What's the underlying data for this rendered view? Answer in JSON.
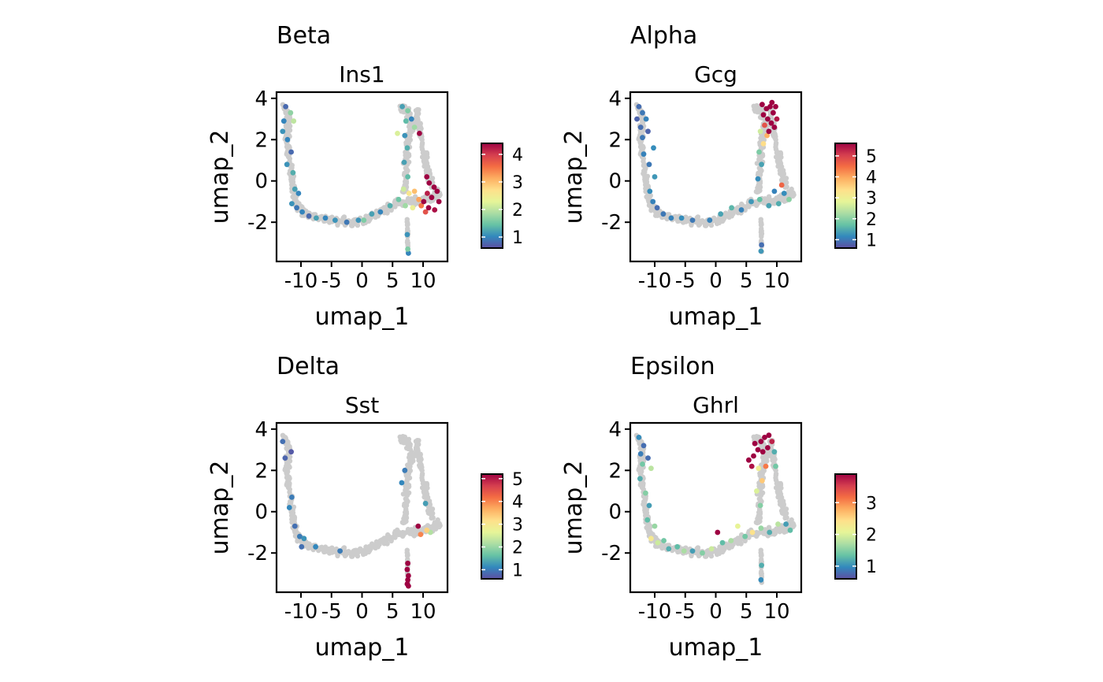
{
  "colors": {
    "background_cells": "#cccccc",
    "spectral_low_to_high": [
      "#5e4fa2",
      "#3288bd",
      "#66c2a5",
      "#abdda4",
      "#e6f598",
      "#fee08b",
      "#fdae61",
      "#f46d43",
      "#d53e4f",
      "#9e0142"
    ]
  },
  "chart_data": [
    {
      "type": "scatter",
      "title": "Beta",
      "subtitle": "Ins1",
      "xlabel": "umap_1",
      "ylabel": "umap_2",
      "xlim": [
        -14,
        14
      ],
      "ylim": [
        -3.9,
        4.3
      ],
      "xticks": [
        -10,
        -5,
        0,
        5,
        10
      ],
      "xtick_labels": [
        "-10",
        "-5",
        "0",
        "5",
        "10"
      ],
      "yticks": [
        -2,
        0,
        2,
        4
      ],
      "ytick_labels": [
        "-2",
        "0",
        "2",
        "4"
      ],
      "colorbar": {
        "min": 0.6,
        "max": 4.4,
        "ticks": [
          1,
          2,
          3,
          4
        ],
        "tick_labels": [
          "1",
          "2",
          "3",
          "4"
        ]
      },
      "expressing_points": [
        {
          "x": -12.5,
          "y": 3.6,
          "v": 0.8
        },
        {
          "x": -12.8,
          "y": 2.9,
          "v": 1.0
        },
        {
          "x": -13.0,
          "y": 2.4,
          "v": 1.1
        },
        {
          "x": -11.7,
          "y": 3.3,
          "v": 1.7
        },
        {
          "x": -11.2,
          "y": 2.9,
          "v": 2.0
        },
        {
          "x": -12.2,
          "y": 2.0,
          "v": 1.0
        },
        {
          "x": -11.6,
          "y": 1.4,
          "v": 0.8
        },
        {
          "x": -12.3,
          "y": 0.8,
          "v": 1.1
        },
        {
          "x": -11.3,
          "y": 0.4,
          "v": 1.3
        },
        {
          "x": -11.0,
          "y": -0.4,
          "v": 1.2
        },
        {
          "x": -10.4,
          "y": -0.6,
          "v": 1.0
        },
        {
          "x": -11.5,
          "y": -1.1,
          "v": 1.1
        },
        {
          "x": -10.7,
          "y": -1.3,
          "v": 0.9
        },
        {
          "x": -9.8,
          "y": -1.5,
          "v": 1.0
        },
        {
          "x": -8.7,
          "y": -1.7,
          "v": 0.8
        },
        {
          "x": -7.5,
          "y": -1.8,
          "v": 1.2
        },
        {
          "x": -6.0,
          "y": -1.8,
          "v": 1.0
        },
        {
          "x": -4.4,
          "y": -1.9,
          "v": 1.1
        },
        {
          "x": -2.5,
          "y": -2.0,
          "v": 0.9
        },
        {
          "x": -0.6,
          "y": -1.9,
          "v": 1.1
        },
        {
          "x": 0.3,
          "y": -1.9,
          "v": 1.6
        },
        {
          "x": 1.6,
          "y": -1.6,
          "v": 1.2
        },
        {
          "x": 3.0,
          "y": -1.5,
          "v": 1.0
        },
        {
          "x": 4.6,
          "y": -1.2,
          "v": 1.3
        },
        {
          "x": 6.0,
          "y": -0.9,
          "v": 1.5
        },
        {
          "x": 6.6,
          "y": 3.6,
          "v": 1.2
        },
        {
          "x": 7.5,
          "y": 3.4,
          "v": 1.6
        },
        {
          "x": 8.1,
          "y": 3.0,
          "v": 1.0
        },
        {
          "x": 8.6,
          "y": 2.6,
          "v": 1.8
        },
        {
          "x": 7.2,
          "y": 2.9,
          "v": 1.4
        },
        {
          "x": 5.8,
          "y": 2.3,
          "v": 2.2
        },
        {
          "x": 7.0,
          "y": 2.2,
          "v": 1.1
        },
        {
          "x": 9.4,
          "y": 2.3,
          "v": 4.4
        },
        {
          "x": 7.4,
          "y": 1.6,
          "v": 1.3
        },
        {
          "x": 6.9,
          "y": 0.9,
          "v": 1.2
        },
        {
          "x": 7.5,
          "y": 0.2,
          "v": 1.4
        },
        {
          "x": 6.8,
          "y": -0.4,
          "v": 2.1
        },
        {
          "x": 7.7,
          "y": -0.6,
          "v": 2.6
        },
        {
          "x": 8.6,
          "y": -0.5,
          "v": 3.0
        },
        {
          "x": 9.3,
          "y": -0.9,
          "v": 3.2
        },
        {
          "x": 7.1,
          "y": -1.2,
          "v": 1.8
        },
        {
          "x": 8.3,
          "y": -1.3,
          "v": 2.4
        },
        {
          "x": 10.6,
          "y": 0.2,
          "v": 4.4
        },
        {
          "x": 11.0,
          "y": -0.1,
          "v": 4.4
        },
        {
          "x": 11.8,
          "y": -0.3,
          "v": 4.4
        },
        {
          "x": 12.3,
          "y": -0.5,
          "v": 4.4
        },
        {
          "x": 11.4,
          "y": -0.8,
          "v": 4.4
        },
        {
          "x": 12.6,
          "y": -1.0,
          "v": 4.4
        },
        {
          "x": 10.7,
          "y": -0.6,
          "v": 4.2
        },
        {
          "x": 10.1,
          "y": -1.0,
          "v": 4.4
        },
        {
          "x": 10.9,
          "y": -1.3,
          "v": 4.4
        },
        {
          "x": 11.9,
          "y": -1.4,
          "v": 4.3
        },
        {
          "x": 10.4,
          "y": -1.5,
          "v": 3.8
        },
        {
          "x": 9.7,
          "y": -1.2,
          "v": 3.5
        },
        {
          "x": 7.4,
          "y": -2.6,
          "v": 1.1
        },
        {
          "x": 7.5,
          "y": -3.3,
          "v": 1.6
        },
        {
          "x": 7.6,
          "y": -3.5,
          "v": 1.0
        }
      ]
    },
    {
      "type": "scatter",
      "title": "Alpha",
      "subtitle": "Gcg",
      "xlabel": "umap_1",
      "ylabel": "umap_2",
      "xlim": [
        -14,
        14
      ],
      "ylim": [
        -3.9,
        4.3
      ],
      "xticks": [
        -10,
        -5,
        0,
        5,
        10
      ],
      "xtick_labels": [
        "-10",
        "-5",
        "0",
        "5",
        "10"
      ],
      "yticks": [
        -2,
        0,
        2,
        4
      ],
      "ytick_labels": [
        "-2",
        "0",
        "2",
        "4"
      ],
      "colorbar": {
        "min": 0.6,
        "max": 5.6,
        "ticks": [
          1,
          2,
          3,
          4,
          5
        ],
        "tick_labels": [
          "1",
          "2",
          "3",
          "4",
          "5"
        ]
      },
      "expressing_points": [
        {
          "x": -12.6,
          "y": 3.6,
          "v": 0.9
        },
        {
          "x": -12.0,
          "y": 3.3,
          "v": 1.0
        },
        {
          "x": -12.9,
          "y": 3.0,
          "v": 0.8
        },
        {
          "x": -11.4,
          "y": 3.0,
          "v": 1.1
        },
        {
          "x": -12.3,
          "y": 2.6,
          "v": 0.9
        },
        {
          "x": -11.1,
          "y": 2.4,
          "v": 0.8
        },
        {
          "x": -12.0,
          "y": 2.1,
          "v": 1.0
        },
        {
          "x": -10.2,
          "y": 1.6,
          "v": 1.2
        },
        {
          "x": -11.8,
          "y": 1.3,
          "v": 1.1
        },
        {
          "x": -10.9,
          "y": 0.8,
          "v": 1.0
        },
        {
          "x": -10.0,
          "y": 0.2,
          "v": 1.3
        },
        {
          "x": -10.8,
          "y": -0.5,
          "v": 1.2
        },
        {
          "x": -10.3,
          "y": -1.0,
          "v": 1.1
        },
        {
          "x": -9.6,
          "y": -1.3,
          "v": 0.9
        },
        {
          "x": -8.6,
          "y": -1.6,
          "v": 1.0
        },
        {
          "x": -7.3,
          "y": -1.8,
          "v": 1.1
        },
        {
          "x": -5.6,
          "y": -1.8,
          "v": 1.2
        },
        {
          "x": -3.8,
          "y": -1.9,
          "v": 1.0
        },
        {
          "x": -1.0,
          "y": -1.9,
          "v": 1.1
        },
        {
          "x": 0.8,
          "y": -1.6,
          "v": 1.4
        },
        {
          "x": 2.6,
          "y": -1.3,
          "v": 1.6
        },
        {
          "x": 4.2,
          "y": -1.4,
          "v": 1.1
        },
        {
          "x": 5.8,
          "y": -1.0,
          "v": 1.3
        },
        {
          "x": 7.2,
          "y": -0.9,
          "v": 1.7
        },
        {
          "x": 8.7,
          "y": -1.2,
          "v": 1.4
        },
        {
          "x": 10.3,
          "y": -1.1,
          "v": 1.5
        },
        {
          "x": 11.2,
          "y": -0.6,
          "v": 1.2
        },
        {
          "x": 12.0,
          "y": -0.9,
          "v": 2.0
        },
        {
          "x": 10.8,
          "y": -0.2,
          "v": 4.6
        },
        {
          "x": 9.6,
          "y": -0.5,
          "v": 1.1
        },
        {
          "x": 6.9,
          "y": 0.1,
          "v": 1.2
        },
        {
          "x": 7.5,
          "y": 0.8,
          "v": 1.4
        },
        {
          "x": 7.1,
          "y": 1.4,
          "v": 1.9
        },
        {
          "x": 7.8,
          "y": 1.8,
          "v": 3.4
        },
        {
          "x": 8.4,
          "y": 2.2,
          "v": 3.9
        },
        {
          "x": 7.3,
          "y": 2.4,
          "v": 2.6
        },
        {
          "x": 8.0,
          "y": 2.7,
          "v": 4.8
        },
        {
          "x": 7.8,
          "y": 3.2,
          "v": 5.6
        },
        {
          "x": 8.3,
          "y": 3.5,
          "v": 5.6
        },
        {
          "x": 8.9,
          "y": 3.6,
          "v": 5.6
        },
        {
          "x": 9.4,
          "y": 3.3,
          "v": 5.6
        },
        {
          "x": 8.5,
          "y": 3.0,
          "v": 5.6
        },
        {
          "x": 9.1,
          "y": 2.8,
          "v": 5.6
        },
        {
          "x": 9.6,
          "y": 2.6,
          "v": 5.6
        },
        {
          "x": 8.7,
          "y": 2.4,
          "v": 5.6
        },
        {
          "x": 9.2,
          "y": 3.8,
          "v": 5.6
        },
        {
          "x": 7.6,
          "y": 3.7,
          "v": 5.6
        },
        {
          "x": 10.0,
          "y": 3.0,
          "v": 5.4
        },
        {
          "x": 9.8,
          "y": 3.6,
          "v": 5.6
        },
        {
          "x": 7.5,
          "y": -3.1,
          "v": 0.9
        },
        {
          "x": 7.4,
          "y": -3.4,
          "v": 1.3
        }
      ]
    },
    {
      "type": "scatter",
      "title": "Delta",
      "subtitle": "Sst",
      "xlabel": "umap_1",
      "ylabel": "umap_2",
      "xlim": [
        -14,
        14
      ],
      "ylim": [
        -3.9,
        4.3
      ],
      "xticks": [
        -10,
        -5,
        0,
        5,
        10
      ],
      "xtick_labels": [
        "-10",
        "-5",
        "0",
        "5",
        "10"
      ],
      "yticks": [
        -2,
        0,
        2,
        4
      ],
      "ytick_labels": [
        "-2",
        "0",
        "2",
        "4"
      ],
      "colorbar": {
        "min": 0.6,
        "max": 5.2,
        "ticks": [
          1,
          2,
          3,
          4,
          5
        ],
        "tick_labels": [
          "1",
          "2",
          "3",
          "4",
          "5"
        ]
      },
      "expressing_points": [
        {
          "x": -13.0,
          "y": 3.4,
          "v": 0.9
        },
        {
          "x": -11.6,
          "y": 2.9,
          "v": 0.7
        },
        {
          "x": -12.6,
          "y": 2.6,
          "v": 0.8
        },
        {
          "x": -11.5,
          "y": 0.7,
          "v": 1.0
        },
        {
          "x": -11.9,
          "y": 0.2,
          "v": 1.1
        },
        {
          "x": -11.0,
          "y": -0.7,
          "v": 0.9
        },
        {
          "x": -10.2,
          "y": -1.2,
          "v": 1.0
        },
        {
          "x": -9.5,
          "y": -1.3,
          "v": 1.2
        },
        {
          "x": -9.9,
          "y": -1.7,
          "v": 0.9
        },
        {
          "x": -7.6,
          "y": -1.7,
          "v": 1.1
        },
        {
          "x": -3.6,
          "y": -1.9,
          "v": 1.0
        },
        {
          "x": 7.0,
          "y": 2.0,
          "v": 1.0
        },
        {
          "x": 6.5,
          "y": 1.4,
          "v": 1.1
        },
        {
          "x": 10.4,
          "y": 0.4,
          "v": 1.3
        },
        {
          "x": 9.2,
          "y": -0.7,
          "v": 5.2
        },
        {
          "x": 10.6,
          "y": -0.9,
          "v": 3.3
        },
        {
          "x": 11.2,
          "y": -1.0,
          "v": 2.2
        },
        {
          "x": 9.6,
          "y": -1.1,
          "v": 4.0
        },
        {
          "x": 7.5,
          "y": -2.5,
          "v": 5.2
        },
        {
          "x": 7.4,
          "y": -2.8,
          "v": 5.2
        },
        {
          "x": 7.6,
          "y": -3.1,
          "v": 5.2
        },
        {
          "x": 7.5,
          "y": -3.3,
          "v": 5.2
        },
        {
          "x": 7.4,
          "y": -3.5,
          "v": 5.2
        },
        {
          "x": 7.6,
          "y": -3.6,
          "v": 5.2
        }
      ]
    },
    {
      "type": "scatter",
      "title": "Epsilon",
      "subtitle": "Ghrl",
      "xlabel": "umap_1",
      "ylabel": "umap_2",
      "xlim": [
        -14,
        14
      ],
      "ylim": [
        -3.9,
        4.3
      ],
      "xticks": [
        -10,
        -5,
        0,
        5,
        10
      ],
      "xtick_labels": [
        "-10",
        "-5",
        "0",
        "5",
        "10"
      ],
      "yticks": [
        -2,
        0,
        2,
        4
      ],
      "ytick_labels": [
        "-2",
        "0",
        "2",
        "4"
      ],
      "colorbar": {
        "min": 0.6,
        "max": 3.9,
        "ticks": [
          1,
          2,
          3
        ],
        "tick_labels": [
          "1",
          "2",
          "3"
        ]
      },
      "expressing_points": [
        {
          "x": -12.6,
          "y": 3.6,
          "v": 1.0
        },
        {
          "x": -11.8,
          "y": 3.2,
          "v": 0.8
        },
        {
          "x": -12.3,
          "y": 2.8,
          "v": 0.9
        },
        {
          "x": -11.1,
          "y": 2.6,
          "v": 0.8
        },
        {
          "x": -12.0,
          "y": 2.3,
          "v": 1.4
        },
        {
          "x": -10.6,
          "y": 2.1,
          "v": 1.8
        },
        {
          "x": -12.4,
          "y": 1.6,
          "v": 1.2
        },
        {
          "x": -11.5,
          "y": 0.9,
          "v": 1.5
        },
        {
          "x": -10.9,
          "y": 0.3,
          "v": 1.1
        },
        {
          "x": -11.2,
          "y": -0.4,
          "v": 1.3
        },
        {
          "x": -10.0,
          "y": -0.7,
          "v": 1.6
        },
        {
          "x": -10.6,
          "y": -1.3,
          "v": 2.3
        },
        {
          "x": -9.5,
          "y": -1.5,
          "v": 1.9
        },
        {
          "x": -8.5,
          "y": -1.4,
          "v": 1.4
        },
        {
          "x": -7.7,
          "y": -1.8,
          "v": 1.2
        },
        {
          "x": -6.3,
          "y": -1.7,
          "v": 1.3
        },
        {
          "x": -5.2,
          "y": -1.9,
          "v": 1.7
        },
        {
          "x": -3.8,
          "y": -1.9,
          "v": 1.1
        },
        {
          "x": -2.2,
          "y": -2.0,
          "v": 1.5
        },
        {
          "x": -0.7,
          "y": -1.8,
          "v": 1.9
        },
        {
          "x": 0.3,
          "y": -1.0,
          "v": 3.9
        },
        {
          "x": 1.1,
          "y": -1.5,
          "v": 1.3
        },
        {
          "x": 2.5,
          "y": -1.4,
          "v": 1.7
        },
        {
          "x": 3.6,
          "y": -0.7,
          "v": 2.1
        },
        {
          "x": 4.8,
          "y": -1.2,
          "v": 1.4
        },
        {
          "x": 6.0,
          "y": -1.0,
          "v": 2.4
        },
        {
          "x": 7.4,
          "y": -0.8,
          "v": 1.6
        },
        {
          "x": 8.8,
          "y": -1.0,
          "v": 1.2
        },
        {
          "x": 10.2,
          "y": -0.6,
          "v": 1.8
        },
        {
          "x": 11.5,
          "y": -0.6,
          "v": 1.1
        },
        {
          "x": 12.2,
          "y": -0.9,
          "v": 1.3
        },
        {
          "x": 7.3,
          "y": 0.3,
          "v": 1.5
        },
        {
          "x": 6.7,
          "y": 1.0,
          "v": 2.0
        },
        {
          "x": 7.6,
          "y": 1.5,
          "v": 2.6
        },
        {
          "x": 7.0,
          "y": 2.1,
          "v": 2.2
        },
        {
          "x": 8.2,
          "y": 2.2,
          "v": 3.1
        },
        {
          "x": 5.4,
          "y": 2.5,
          "v": 3.9
        },
        {
          "x": 6.2,
          "y": 2.7,
          "v": 3.9
        },
        {
          "x": 6.9,
          "y": 3.0,
          "v": 3.9
        },
        {
          "x": 7.4,
          "y": 3.4,
          "v": 3.9
        },
        {
          "x": 8.0,
          "y": 3.6,
          "v": 3.9
        },
        {
          "x": 8.7,
          "y": 3.7,
          "v": 3.9
        },
        {
          "x": 6.4,
          "y": 3.3,
          "v": 3.9
        },
        {
          "x": 7.7,
          "y": 2.9,
          "v": 3.9
        },
        {
          "x": 5.9,
          "y": 2.2,
          "v": 3.8
        },
        {
          "x": 8.5,
          "y": 3.1,
          "v": 3.9
        },
        {
          "x": 9.2,
          "y": 3.4,
          "v": 3.7
        },
        {
          "x": 9.6,
          "y": 2.9,
          "v": 1.2
        },
        {
          "x": 9.8,
          "y": 2.2,
          "v": 1.4
        },
        {
          "x": 7.5,
          "y": -2.6,
          "v": 1.2
        },
        {
          "x": 7.4,
          "y": -3.3,
          "v": 1.0
        }
      ]
    }
  ]
}
